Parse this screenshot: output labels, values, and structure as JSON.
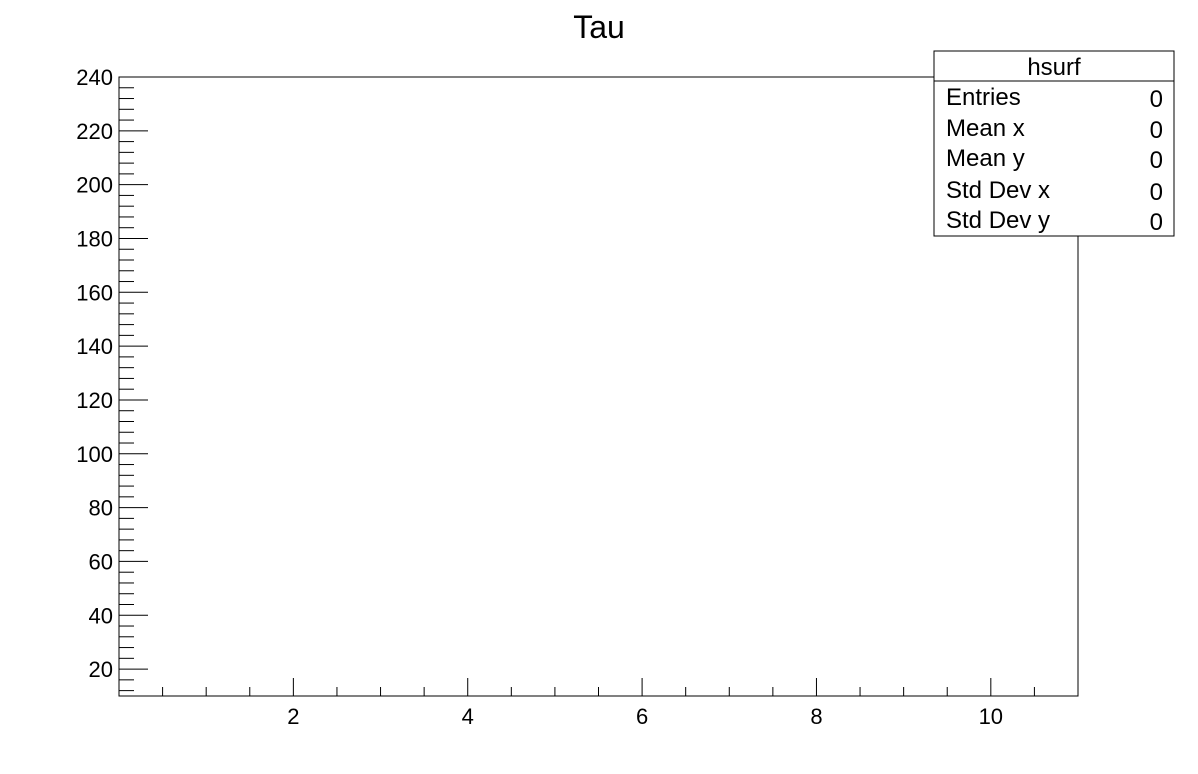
{
  "chart_data": {
    "type": "heatmap",
    "title": "Tau",
    "xlabel": "",
    "ylabel": "",
    "xlim": [
      0,
      11
    ],
    "ylim": [
      10,
      240
    ],
    "x_ticks": [
      2,
      4,
      6,
      8,
      10
    ],
    "x_tick_labels": [
      "2",
      "4",
      "6",
      "8",
      "10"
    ],
    "x_minor_step": 0.5,
    "y_ticks": [
      20,
      40,
      60,
      80,
      100,
      120,
      140,
      160,
      180,
      200,
      220,
      240
    ],
    "y_tick_labels": [
      "20",
      "40",
      "60",
      "80",
      "100",
      "120",
      "140",
      "160",
      "180",
      "200",
      "220",
      "240"
    ],
    "y_minor_step": 4,
    "grid": false,
    "values": [],
    "stats_box": {
      "placement": "top-right",
      "name": "hsurf",
      "rows": [
        {
          "label": "Entries",
          "value": "0"
        },
        {
          "label": "Mean x",
          "value": "0"
        },
        {
          "label": "Mean y",
          "value": "0"
        },
        {
          "label": "Std Dev x",
          "value": "0"
        },
        {
          "label": "Std Dev y",
          "value": "0"
        }
      ]
    }
  }
}
